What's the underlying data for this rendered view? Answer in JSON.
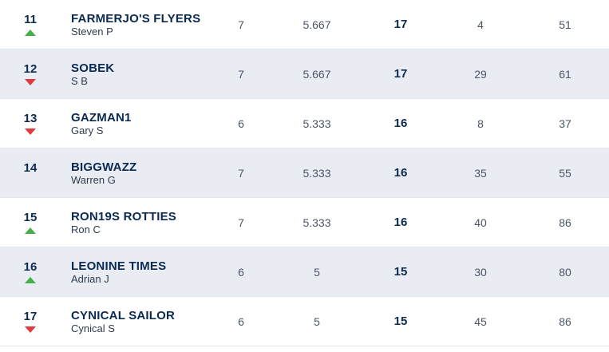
{
  "rows": [
    {
      "rank": "11",
      "move": "up",
      "team": "FARMERJO'S FLYERS",
      "manager": "Steven P",
      "played": "7",
      "avg": "5.667",
      "points": "17",
      "col_a": "4",
      "col_b": "51"
    },
    {
      "rank": "12",
      "move": "down",
      "team": "SOBEK",
      "manager": "S B",
      "played": "7",
      "avg": "5.667",
      "points": "17",
      "col_a": "29",
      "col_b": "61"
    },
    {
      "rank": "13",
      "move": "down",
      "team": "GAZMAN1",
      "manager": "Gary S",
      "played": "6",
      "avg": "5.333",
      "points": "16",
      "col_a": "8",
      "col_b": "37"
    },
    {
      "rank": "14",
      "move": "none",
      "team": "BIGGWAZZ",
      "manager": "Warren G",
      "played": "7",
      "avg": "5.333",
      "points": "16",
      "col_a": "35",
      "col_b": "55"
    },
    {
      "rank": "15",
      "move": "up",
      "team": "RON19S ROTTIES",
      "manager": "Ron C",
      "played": "7",
      "avg": "5.333",
      "points": "16",
      "col_a": "40",
      "col_b": "86"
    },
    {
      "rank": "16",
      "move": "up",
      "team": "LEONINE TIMES",
      "manager": "Adrian J",
      "played": "6",
      "avg": "5",
      "points": "15",
      "col_a": "30",
      "col_b": "80"
    },
    {
      "rank": "17",
      "move": "down",
      "team": "CYNICAL SAILOR",
      "manager": "Cynical S",
      "played": "6",
      "avg": "5",
      "points": "15",
      "col_a": "45",
      "col_b": "86"
    }
  ],
  "colors": {
    "up": "#43b04a",
    "down": "#e0393e",
    "shaded_row": "#e9ecf3",
    "team_text": "#0a2a52"
  }
}
